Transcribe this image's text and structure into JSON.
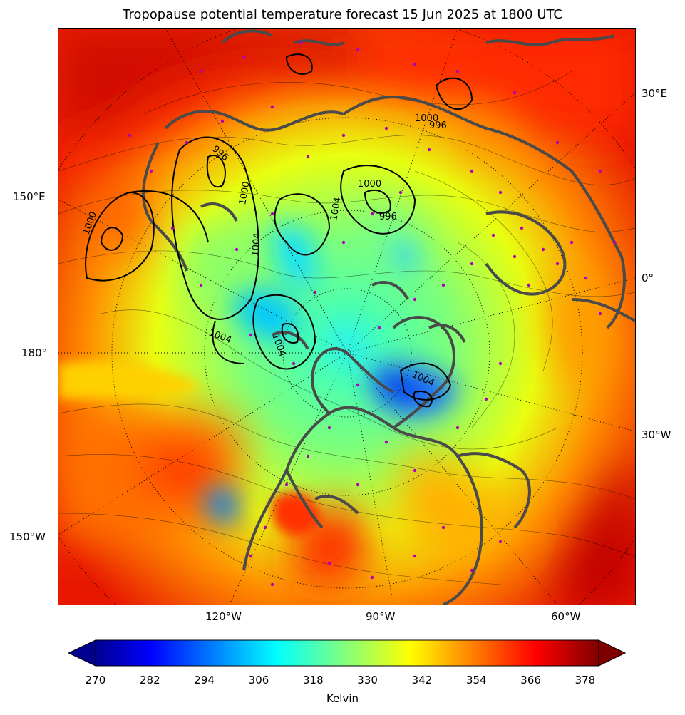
{
  "title": "Tropopause potential temperature forecast 15 Jun 2025 at 1800 UTC",
  "map": {
    "projection": "north-polar-stereographic",
    "field": "tropopause potential temperature",
    "overlay": "sea-level pressure contours (hPa)",
    "longitude_labels": {
      "left": [
        "150°E",
        "180°",
        "150°W"
      ],
      "bottom": [
        "120°W",
        "90°W",
        "60°W"
      ],
      "right": [
        "30°E",
        "0°",
        "30°W"
      ]
    },
    "contour_labels": [
      "1000",
      "1000",
      "996",
      "1000",
      "1004",
      "1004",
      "1004",
      "1004",
      "996",
      "1000",
      "1004",
      "996"
    ],
    "colors": {
      "coastline": "#4a4a4a",
      "grid": "#000000",
      "pressure_contour": "#000000",
      "station_marker": "#b000b8"
    }
  },
  "colorbar": {
    "label": "Kelvin",
    "ticks": [
      "270",
      "282",
      "294",
      "306",
      "318",
      "330",
      "342",
      "354",
      "366",
      "378"
    ],
    "min": 270,
    "max": 381,
    "extend": "both",
    "colormap": "jet"
  }
}
